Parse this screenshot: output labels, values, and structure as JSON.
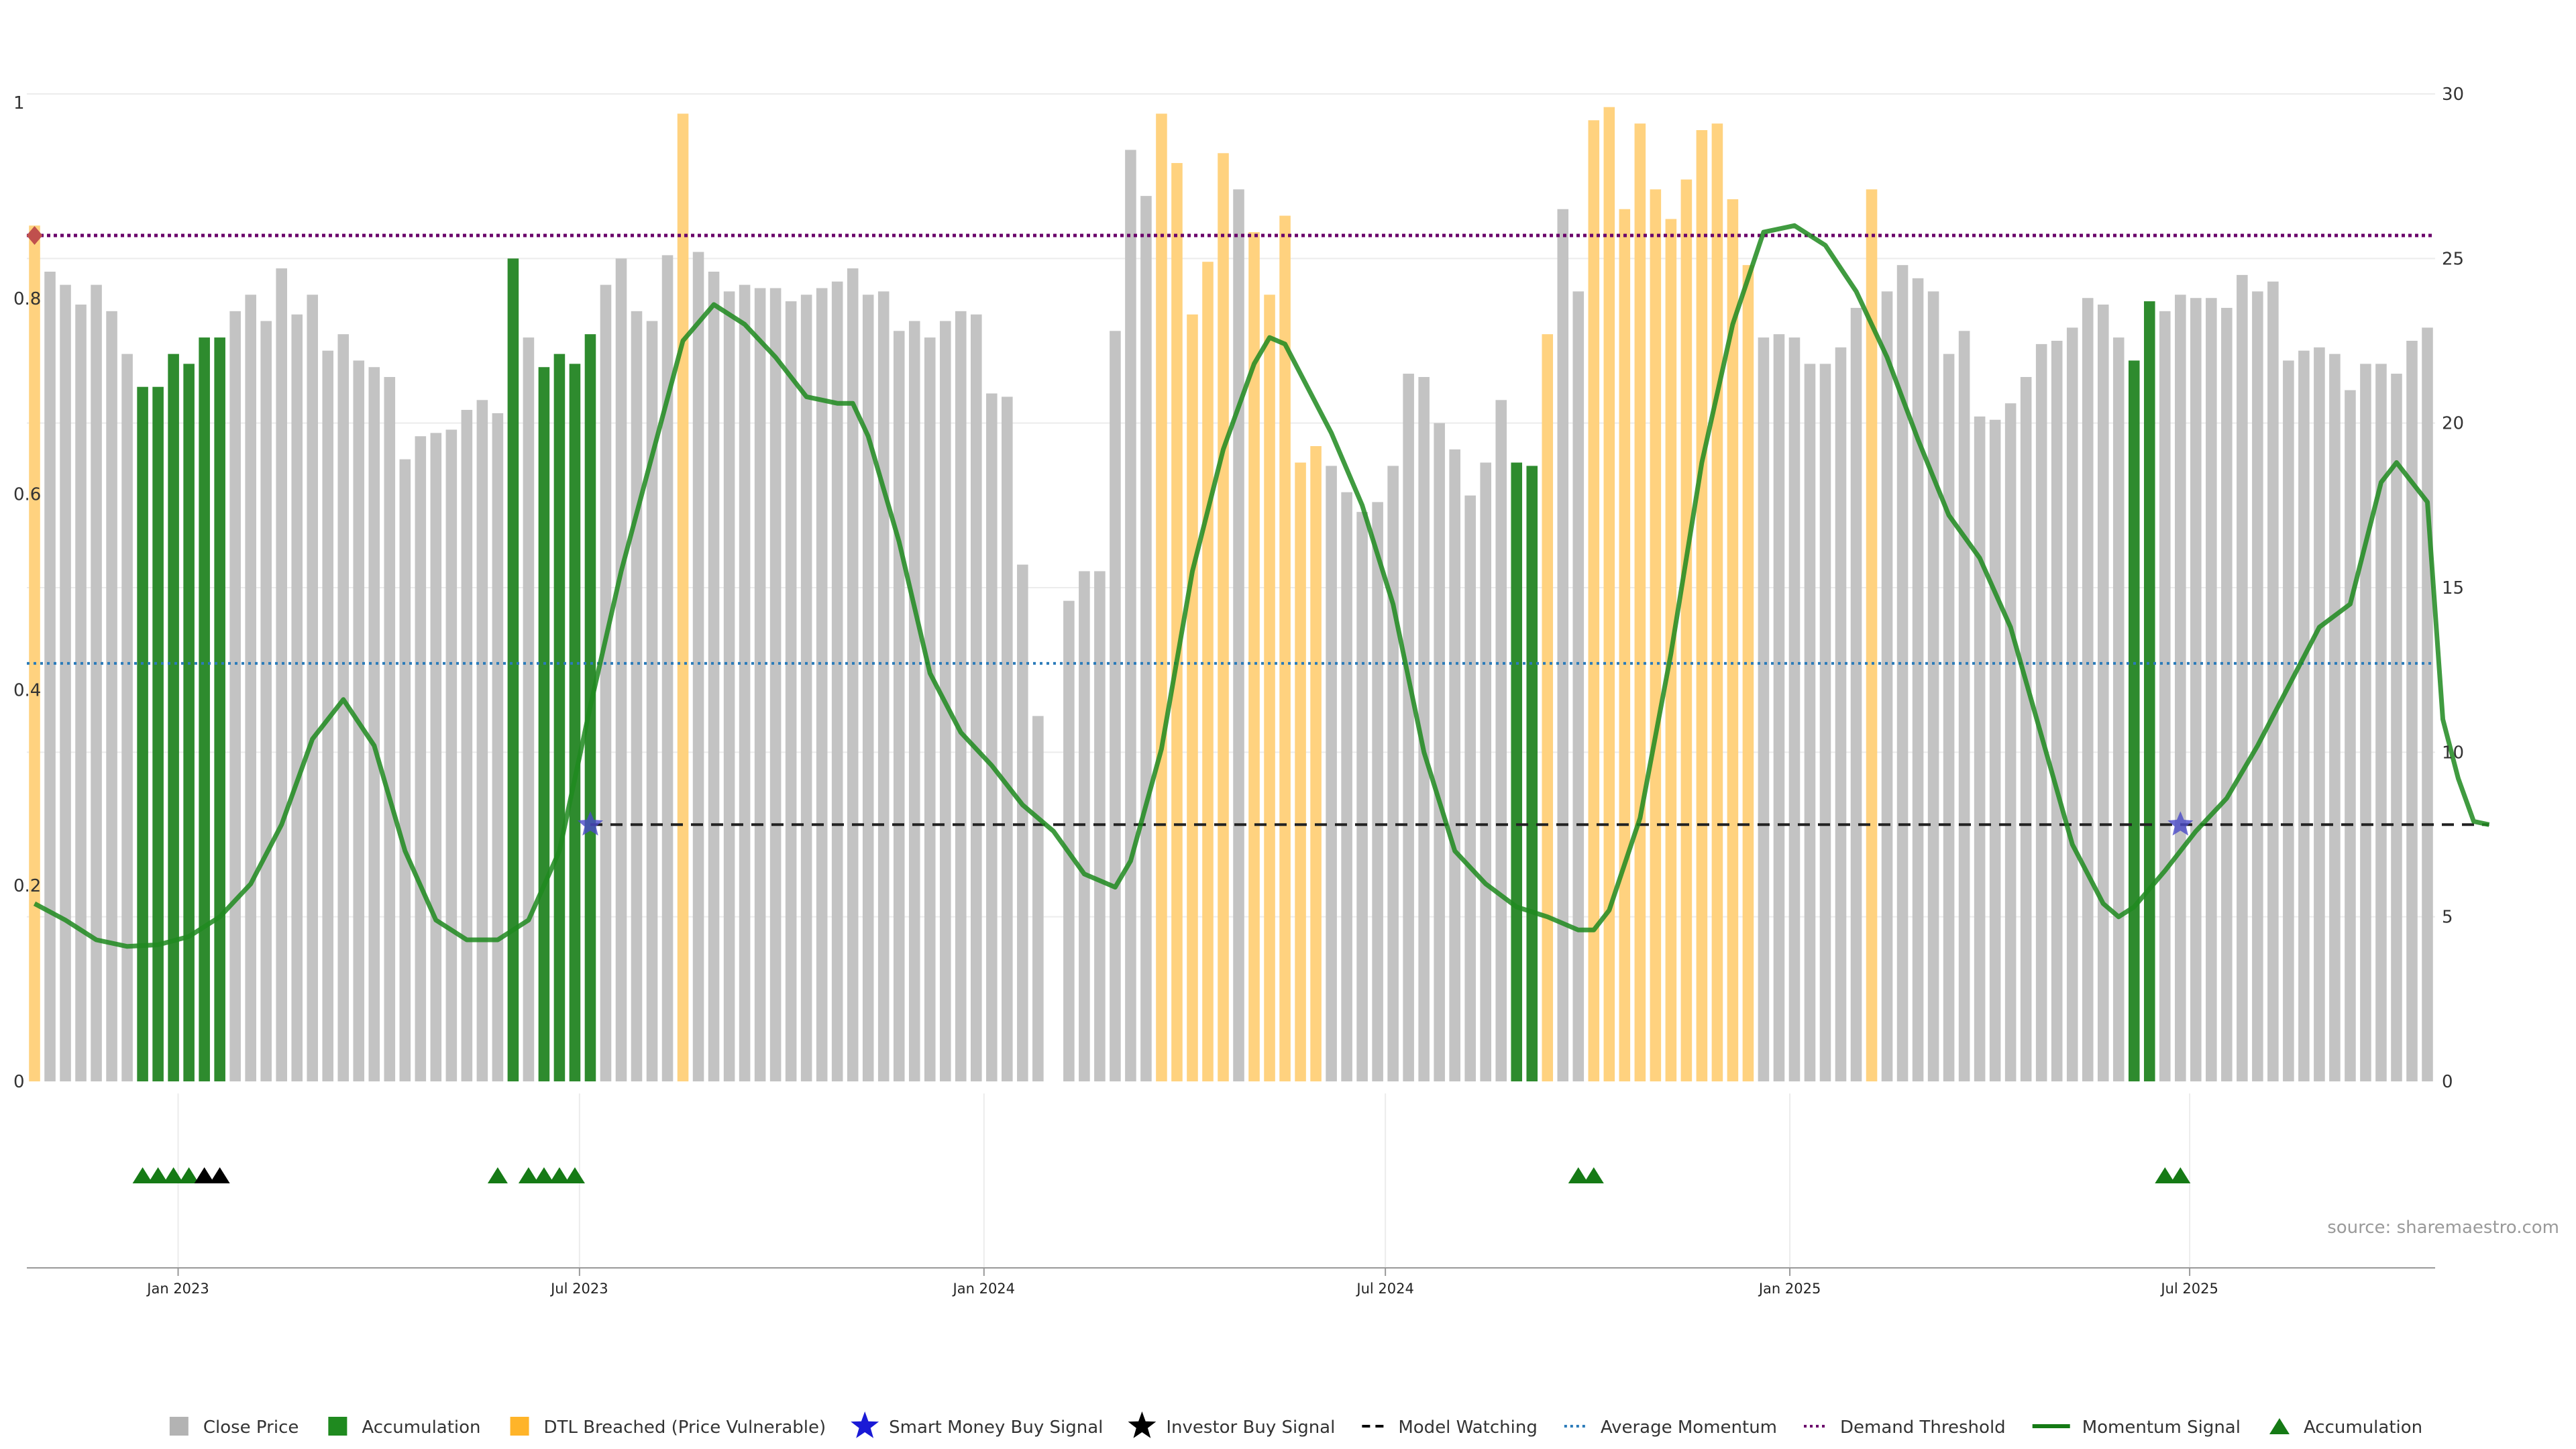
{
  "chart_data": {
    "type": "bar",
    "source_label": "source: sharemaestro.com",
    "x_ticks": [
      "Jan 2023",
      "Jul 2023",
      "Jan 2024",
      "Jul 2024",
      "Jan 2025",
      "Jul 2025"
    ],
    "x_tick_positions": [
      9.3,
      35.3,
      61.5,
      87.5,
      113.7,
      139.6
    ],
    "left_axis": {
      "ticks": [
        "0",
        "0.2",
        "0.4",
        "0.6",
        "0.8",
        "1"
      ],
      "ylim": [
        0,
        1.05
      ]
    },
    "right_axis": {
      "ticks": [
        "0",
        "5",
        "10",
        "15",
        "20",
        "25",
        "30"
      ],
      "ylim": [
        0,
        30
      ]
    },
    "bars": {
      "close_price": [
        26,
        24.6,
        24.2,
        23.6,
        24.2,
        23.4,
        22.1,
        21.1,
        21.1,
        22.1,
        21.8,
        22.6,
        22.6,
        23.4,
        23.9,
        23.1,
        24.7,
        23.3,
        23.9,
        22.2,
        22.7,
        21.9,
        21.7,
        21.4,
        18.9,
        19.6,
        19.7,
        19.8,
        20.4,
        20.7,
        20.3,
        25,
        22.6,
        21.7,
        22.1,
        21.8,
        22.7,
        24.2,
        25,
        23.4,
        23.1,
        25.1,
        29.4,
        25.2,
        24.6,
        24,
        24.2,
        24.1,
        24.1,
        23.7,
        23.9,
        24.1,
        24.3,
        24.7,
        23.9,
        24,
        22.8,
        23.1,
        22.6,
        23.1,
        23.4,
        23.3,
        20.9,
        20.8,
        15.7,
        11.1,
        0,
        14.6,
        15.5,
        15.5,
        22.8,
        28.3,
        26.9,
        29.4,
        27.9,
        23.3,
        24.9,
        28.2,
        27.1,
        25.8,
        23.9,
        26.3,
        18.8,
        19.3,
        18.7,
        17.9,
        17.3,
        17.6,
        18.7,
        21.5,
        21.4,
        20,
        19.2,
        17.8,
        18.8,
        20.7,
        18.8,
        18.7,
        22.7,
        26.5,
        24,
        29.2,
        29.6,
        26.5,
        29.1,
        27.1,
        26.2,
        27.4,
        28.9,
        29.1,
        26.8,
        24.8,
        22.6,
        22.7,
        22.6,
        21.8,
        21.8,
        22.3,
        23.5,
        27.1,
        24,
        24.8,
        24.4,
        24,
        22.1,
        22.8,
        20.2,
        20.1,
        20.6,
        21.4,
        22.4,
        22.5,
        22.9,
        23.8,
        23.6,
        22.6,
        21.9,
        23.7,
        23.4,
        23.9,
        23.8,
        23.8,
        23.5,
        24.5,
        24,
        24.3,
        21.9,
        22.2,
        22.3,
        22.1,
        21,
        21.8,
        21.8,
        21.5,
        22.5,
        22.9
      ],
      "categories_code": "DGGGGGGAAAAAAGGGGGGGGGGGGGGGGGGAGAAAAGGGGGDGGGGGGGGGGGGGGGGGGGGGGGGGGGGGGDDDDDGDDDDDGGGGGGGGGGGGAADGGDDDDDDDDDDDGGGGGGGDGGGGGGGGGGGGGGGGAAGGGGGGGGGGGGGGGGGGGGGG"
    },
    "momentum_signal": [
      [
        0,
        5.4
      ],
      [
        2,
        4.9
      ],
      [
        4,
        4.3
      ],
      [
        6,
        4.1
      ],
      [
        8,
        4.15
      ],
      [
        10,
        4.4
      ],
      [
        12,
        5.0
      ],
      [
        14,
        6.0
      ],
      [
        16,
        7.8
      ],
      [
        18,
        10.4
      ],
      [
        20,
        11.6
      ],
      [
        22,
        10.2
      ],
      [
        24,
        7.0
      ],
      [
        26,
        4.9
      ],
      [
        28,
        4.3
      ],
      [
        30,
        4.3
      ],
      [
        32,
        4.9
      ],
      [
        34,
        7.0
      ],
      [
        36,
        11.4
      ],
      [
        38,
        15.5
      ],
      [
        40,
        19.0
      ],
      [
        42,
        22.5
      ],
      [
        44,
        23.6
      ],
      [
        46,
        23.0
      ],
      [
        48,
        22.0
      ],
      [
        50,
        20.8
      ],
      [
        52,
        20.6
      ],
      [
        53,
        20.6
      ],
      [
        54,
        19.6
      ],
      [
        56,
        16.4
      ],
      [
        58,
        12.4
      ],
      [
        60,
        10.6
      ],
      [
        62,
        9.6
      ],
      [
        64,
        8.4
      ],
      [
        66,
        7.6
      ],
      [
        68,
        6.3
      ],
      [
        70,
        5.9
      ],
      [
        71,
        6.7
      ],
      [
        73,
        10.1
      ],
      [
        75,
        15.5
      ],
      [
        77,
        19.2
      ],
      [
        79,
        21.8
      ],
      [
        80,
        22.6
      ],
      [
        81,
        22.4
      ],
      [
        82,
        21.5
      ],
      [
        84,
        19.7
      ],
      [
        86,
        17.5
      ],
      [
        88,
        14.5
      ],
      [
        90,
        10.0
      ],
      [
        92,
        7.0
      ],
      [
        94,
        6.0
      ],
      [
        96,
        5.3
      ],
      [
        98,
        5.0
      ],
      [
        100,
        4.6
      ],
      [
        101,
        4.6
      ],
      [
        102,
        5.2
      ],
      [
        104,
        8.0
      ],
      [
        106,
        13.0
      ],
      [
        108,
        18.8
      ],
      [
        110,
        23.0
      ],
      [
        112,
        25.8
      ],
      [
        114,
        26.0
      ],
      [
        116,
        25.4
      ],
      [
        118,
        24.0
      ],
      [
        120,
        22.0
      ],
      [
        122,
        19.5
      ],
      [
        124,
        17.2
      ],
      [
        126,
        15.9
      ],
      [
        128,
        13.8
      ],
      [
        130,
        10.5
      ],
      [
        132,
        7.2
      ],
      [
        134,
        5.4
      ],
      [
        135,
        5.0
      ],
      [
        136,
        5.3
      ],
      [
        138,
        6.4
      ],
      [
        140,
        7.6
      ],
      [
        142,
        8.6
      ],
      [
        144,
        10.2
      ],
      [
        146,
        12.0
      ],
      [
        148,
        13.8
      ],
      [
        150,
        14.5
      ],
      [
        152,
        18.2
      ],
      [
        153,
        18.8
      ],
      [
        154,
        18.2
      ],
      [
        155,
        17.6
      ],
      [
        156,
        11.0
      ],
      [
        157,
        9.2
      ],
      [
        158,
        7.9
      ],
      [
        159,
        7.8
      ]
    ],
    "model_watching_level": 7.8,
    "model_watching_range": [
      36,
      159
    ],
    "average_momentum_level": 12.7,
    "demand_threshold_level": 25.7,
    "demand_marker_index": 0,
    "smart_money_stars": [
      [
        36,
        7.8
      ],
      [
        139,
        7.8
      ]
    ],
    "accumulation_markers": [
      7,
      8,
      9,
      10,
      30,
      32,
      33,
      34,
      35,
      100,
      101,
      138,
      139
    ],
    "investor_markers": [
      11,
      12
    ],
    "legend": [
      {
        "label": "Close Price",
        "kind": "square",
        "color": "#b3b3b3"
      },
      {
        "label": "Accumulation",
        "kind": "square",
        "color": "#1f8a1f"
      },
      {
        "label": "DTL Breached (Price Vulnerable)",
        "kind": "square",
        "color": "#ffb429"
      },
      {
        "label": "Smart Money Buy Signal",
        "kind": "star",
        "color": "#1a1ad6"
      },
      {
        "label": "Investor Buy Signal",
        "kind": "star",
        "color": "#000000"
      },
      {
        "label": "Model Watching",
        "kind": "dash",
        "color": "#000000"
      },
      {
        "label": "Average Momentum",
        "kind": "dot",
        "color": "#2b7bb9"
      },
      {
        "label": "Demand Threshold",
        "kind": "dot",
        "color": "#6a006a"
      },
      {
        "label": "Momentum Signal",
        "kind": "line",
        "color": "#157a15"
      },
      {
        "label": "Accumulation",
        "kind": "triangle",
        "color": "#157a15"
      }
    ],
    "colors": {
      "close_price": "#c3c3c3",
      "accumulation": "#2e8b2e",
      "dtl": "#ffd27f",
      "momentum": "#1f8a1f",
      "average_momentum": "#2b7bb9",
      "demand_threshold": "#6a006a",
      "model_watching": "#222222",
      "smart_money_star": "#4a4ac8",
      "investor_star": "#000000",
      "accumulation_marker": "#157a15",
      "demand_marker": "#c0504d"
    }
  }
}
